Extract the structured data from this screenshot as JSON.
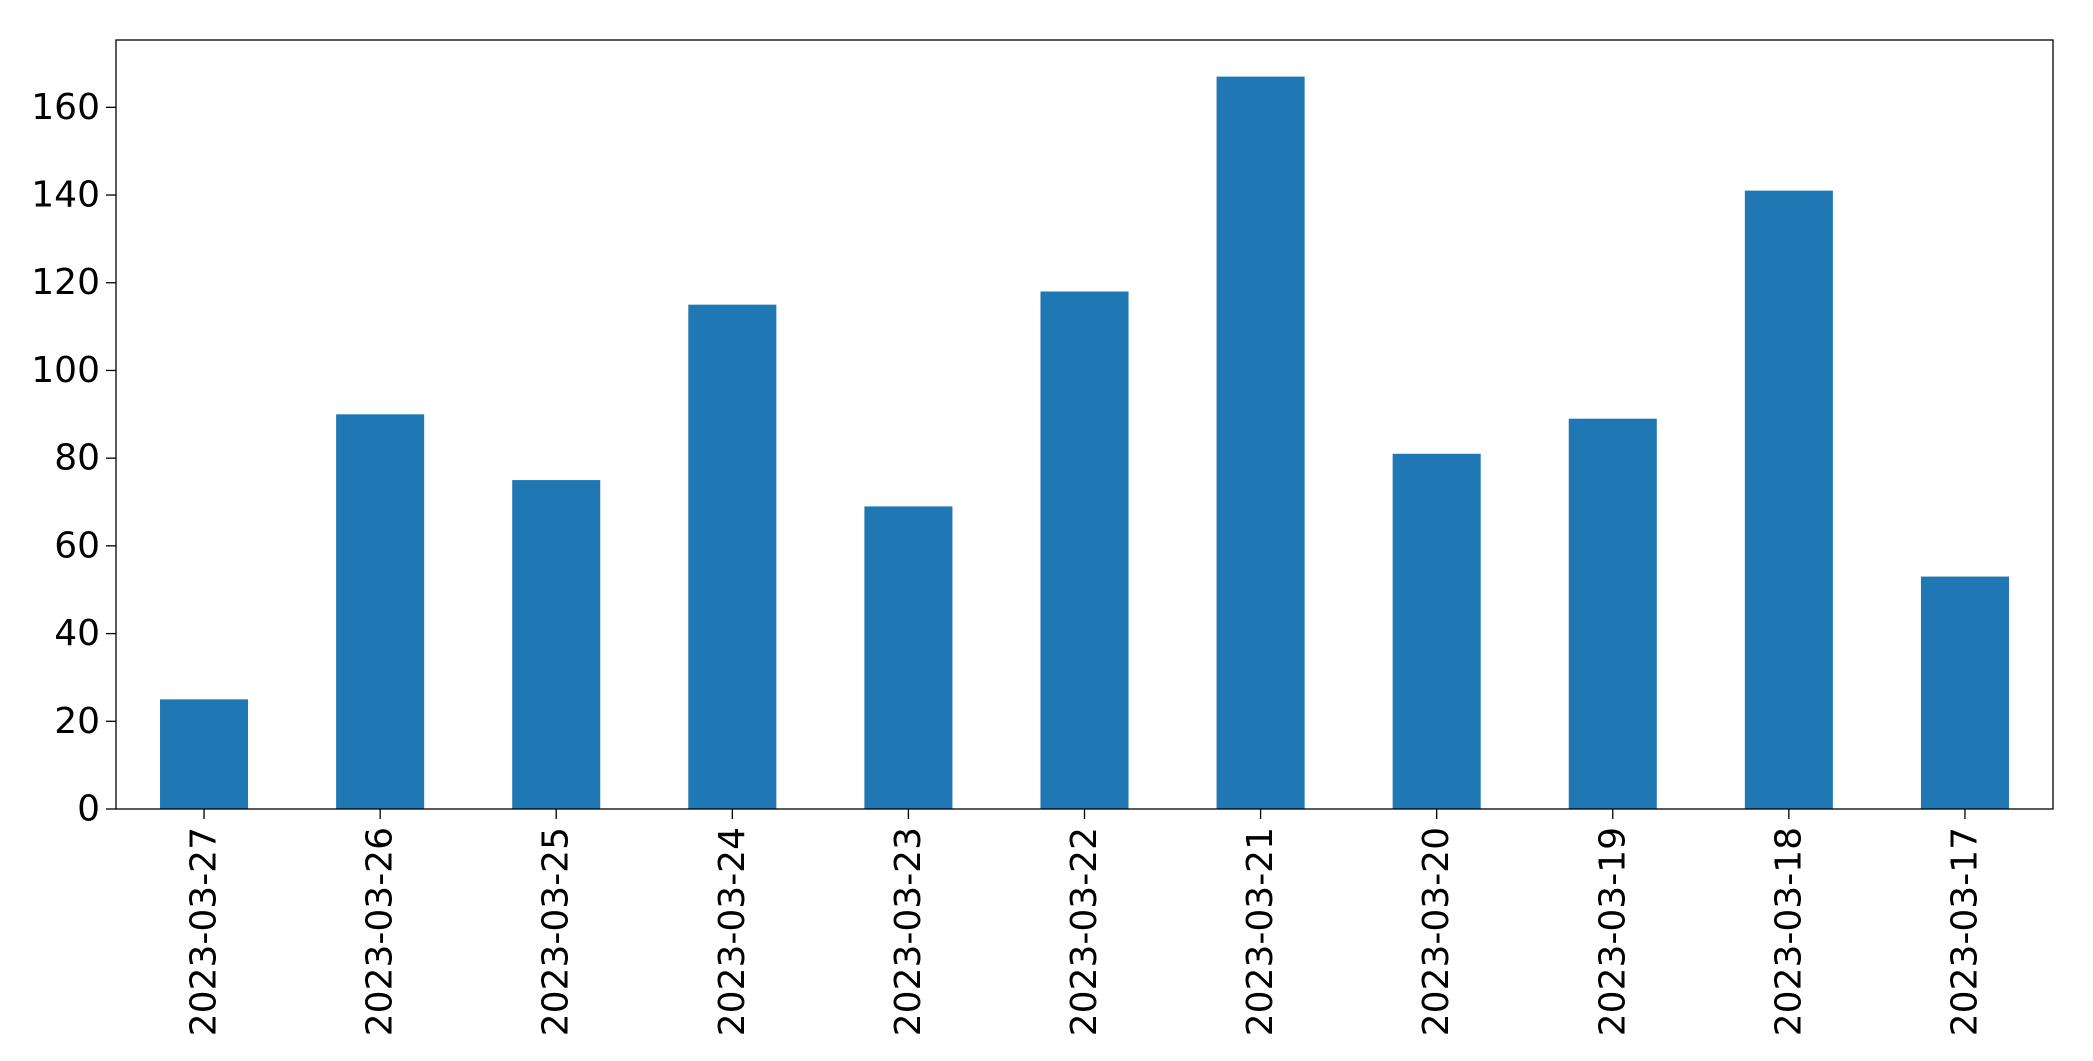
{
  "chart_data": {
    "type": "bar",
    "categories": [
      "2023-03-27",
      "2023-03-26",
      "2023-03-25",
      "2023-03-24",
      "2023-03-23",
      "2023-03-22",
      "2023-03-21",
      "2023-03-20",
      "2023-03-19",
      "2023-03-18",
      "2023-03-17"
    ],
    "values": [
      25,
      90,
      75,
      115,
      69,
      118,
      167,
      81,
      89,
      141,
      53
    ],
    "color": "#1f77b4",
    "ylim": [
      0,
      175.35
    ],
    "yticks": [
      0,
      20,
      40,
      60,
      80,
      100,
      120,
      140,
      160
    ],
    "grid": false
  }
}
